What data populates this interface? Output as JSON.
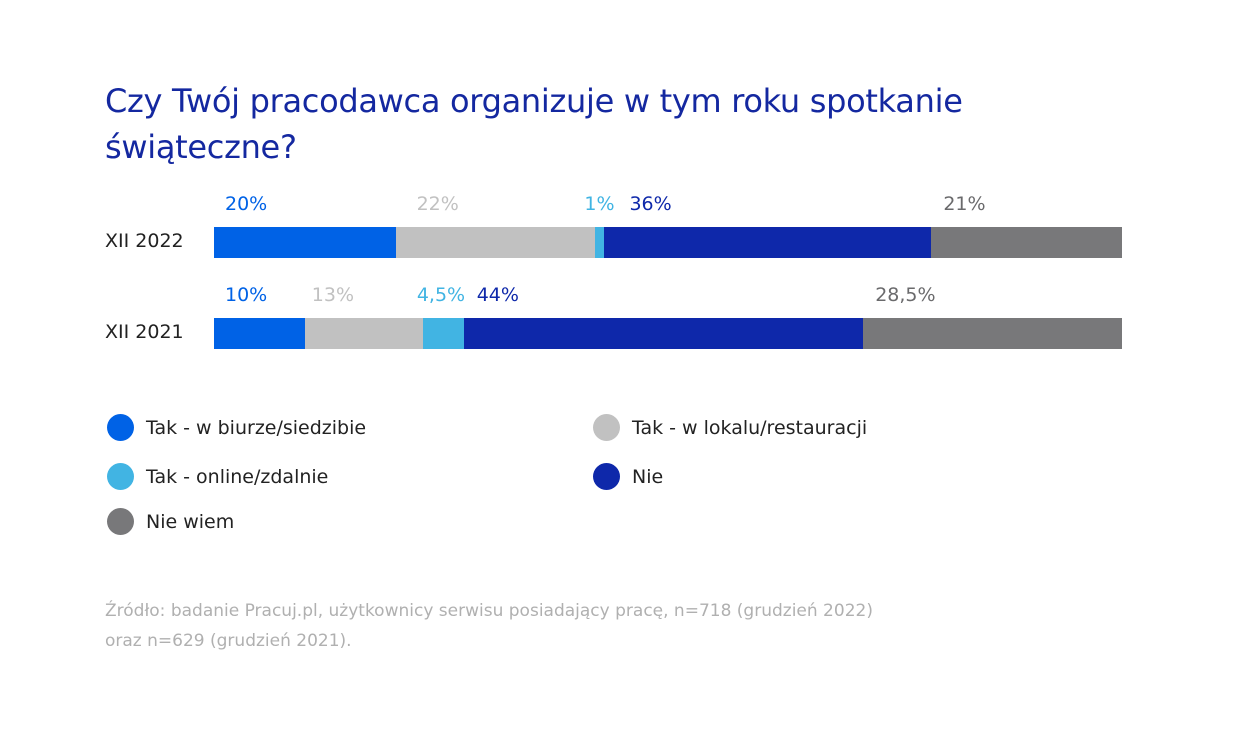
{
  "chart_data": {
    "type": "bar",
    "orientation": "horizontal-stacked",
    "title": "Czy Twój pracodawca organizuje w tym roku spotkanie świąteczne?",
    "categories": [
      "XII 2022",
      "XII 2021"
    ],
    "series": [
      {
        "name": "Tak - w biurze/siedzibie",
        "color": "#0062e6",
        "values": [
          20,
          10
        ],
        "labels": [
          "20%",
          "10%"
        ]
      },
      {
        "name": "Tak - w lokalu/restauracji",
        "color": "#c1c1c1",
        "values": [
          22,
          13
        ],
        "labels": [
          "22%",
          "13%"
        ]
      },
      {
        "name": "Tak - online/zdalnie",
        "color": "#41b4e3",
        "values": [
          1,
          4.5
        ],
        "labels": [
          "1%",
          "4,5%"
        ]
      },
      {
        "name": "Nie",
        "color": "#0e28aa",
        "values": [
          36,
          44
        ],
        "labels": [
          "36%",
          "44%"
        ]
      },
      {
        "name": "Nie wiem",
        "color": "#78787a",
        "values": [
          21,
          28.5
        ],
        "labels": [
          "21%",
          "28,5%"
        ]
      }
    ],
    "xlim": [
      0,
      100
    ],
    "legend_position": "bottom"
  },
  "source": [
    "Źródło: badanie Pracuj.pl, użytkownicy serwisu posiadający pracę, n=718 (grudzień 2022)",
    "oraz n=629 (grudzień 2021)."
  ]
}
